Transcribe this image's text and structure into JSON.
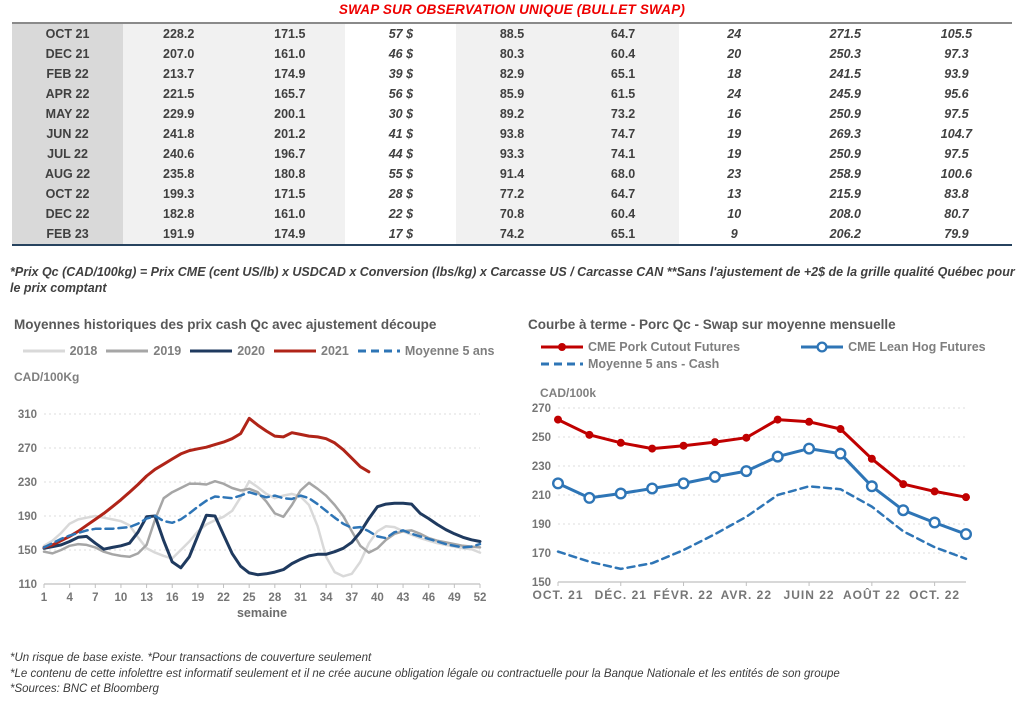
{
  "title": "SWAP SUR OBSERVATION UNIQUE (BULLET SWAP)",
  "colors": {
    "title_red": "#ee0000",
    "table_green": "#00a651",
    "table_blue": "#3b6cd4",
    "month_col_bg": "#d9d9d9",
    "light_col_bg": "#f1f1f1"
  },
  "table": {
    "col_classes": [
      "c-month",
      "c-light",
      "c-light",
      "c-green",
      "c-light",
      "c-light",
      "c-green",
      "c-blue",
      "c-blue"
    ],
    "rows": [
      [
        "OCT 21",
        "228.2",
        "171.5",
        "57 $",
        "88.5",
        "64.7",
        "24",
        "271.5",
        "105.5"
      ],
      [
        "DEC 21",
        "207.0",
        "161.0",
        "46 $",
        "80.3",
        "60.4",
        "20",
        "250.3",
        "97.3"
      ],
      [
        "FEB 22",
        "213.7",
        "174.9",
        "39 $",
        "82.9",
        "65.1",
        "18",
        "241.5",
        "93.9"
      ],
      [
        "APR 22",
        "221.5",
        "165.7",
        "56 $",
        "85.9",
        "61.5",
        "24",
        "245.9",
        "95.6"
      ],
      [
        "MAY 22",
        "229.9",
        "200.1",
        "30 $",
        "89.2",
        "73.2",
        "16",
        "250.9",
        "97.5"
      ],
      [
        "JUN 22",
        "241.8",
        "201.2",
        "41 $",
        "93.8",
        "74.7",
        "19",
        "269.3",
        "104.7"
      ],
      [
        "JUL 22",
        "240.6",
        "196.7",
        "44 $",
        "93.3",
        "74.1",
        "19",
        "250.9",
        "97.5"
      ],
      [
        "AUG 22",
        "235.8",
        "180.8",
        "55 $",
        "91.4",
        "68.0",
        "23",
        "258.9",
        "100.6"
      ],
      [
        "OCT 22",
        "199.3",
        "171.5",
        "28 $",
        "77.2",
        "64.7",
        "13",
        "215.9",
        "83.8"
      ],
      [
        "DEC 22",
        "182.8",
        "161.0",
        "22 $",
        "70.8",
        "60.4",
        "10",
        "208.0",
        "80.7"
      ],
      [
        "FEB 23",
        "191.9",
        "174.9",
        "17 $",
        "74.2",
        "65.1",
        "9",
        "206.2",
        "79.9"
      ]
    ],
    "note": "*Prix Qc (CAD/100kg) = Prix CME (cent US/lb) x USDCAD x Conversion (lbs/kg) x Carcasse US / Carcasse CAN **Sans l'ajustement de +2$ de la grille qualité Québec pour le prix comptant"
  },
  "legends": {
    "left": [
      {
        "label": "2018",
        "color": "#d9d9d9"
      },
      {
        "label": "2019",
        "color": "#a6a6a6"
      },
      {
        "label": "2020",
        "color": "#1f3a5f"
      },
      {
        "label": "2021",
        "color": "#b02418"
      },
      {
        "label": "Moyenne 5 ans",
        "color": "#2e75b6",
        "dash": true
      }
    ],
    "right_row1": [
      {
        "label": "CME Pork Cutout Futures",
        "color": "#c00000",
        "marker": "filled"
      },
      {
        "label": "CME Lean Hog Futures",
        "color": "#2e75b6",
        "marker": "open"
      }
    ],
    "right_row2": [
      {
        "label": "Moyenne 5 ans - Cash",
        "color": "#2e75b6",
        "dash": true
      }
    ]
  },
  "chart_data": [
    {
      "type": "line",
      "title": "Moyennes historiques des prix cash Qc avec ajustement découpe",
      "unit": "CAD/100Kg",
      "xlabel": "semaine",
      "xlim": [
        1,
        52
      ],
      "ylim": [
        110,
        310
      ],
      "y_ticks": [
        110,
        150,
        190,
        230,
        270,
        310
      ],
      "x_ticks": [
        {
          "v": 1,
          "l": "1"
        },
        {
          "v": 4,
          "l": "4"
        },
        {
          "v": 7,
          "l": "7"
        },
        {
          "v": 10,
          "l": "10"
        },
        {
          "v": 13,
          "l": "13"
        },
        {
          "v": 16,
          "l": "16"
        },
        {
          "v": 19,
          "l": "19"
        },
        {
          "v": 22,
          "l": "22"
        },
        {
          "v": 25,
          "l": "25"
        },
        {
          "v": 28,
          "l": "28"
        },
        {
          "v": 31,
          "l": "31"
        },
        {
          "v": 34,
          "l": "34"
        },
        {
          "v": 37,
          "l": "37"
        },
        {
          "v": 40,
          "l": "40"
        },
        {
          "v": 43,
          "l": "43"
        },
        {
          "v": 46,
          "l": "46"
        },
        {
          "v": 49,
          "l": "49"
        },
        {
          "v": 52,
          "l": "52"
        }
      ],
      "series": [
        {
          "name": "2018",
          "color": "#d9d9d9",
          "width": 2.5,
          "values": [
            155,
            161,
            170,
            181,
            186,
            188,
            190,
            188,
            186,
            184,
            179,
            165,
            152,
            147,
            143,
            140,
            150,
            160,
            172,
            180,
            185,
            189,
            196,
            212,
            231,
            224,
            216,
            211,
            214,
            216,
            213,
            203,
            178,
            142,
            124,
            119,
            122,
            136,
            158,
            172,
            178,
            177,
            172,
            168,
            164,
            161,
            158,
            156,
            154,
            152,
            151,
            147
          ]
        },
        {
          "name": "2019",
          "color": "#a6a6a6",
          "width": 2.5,
          "values": [
            148,
            146,
            150,
            155,
            157,
            156,
            153,
            148,
            145,
            143,
            142,
            146,
            156,
            186,
            211,
            218,
            223,
            228,
            228,
            227,
            231,
            228,
            223,
            220,
            222,
            218,
            207,
            193,
            189,
            203,
            220,
            229,
            222,
            214,
            203,
            190,
            172,
            155,
            147,
            152,
            162,
            169,
            172,
            173,
            169,
            164,
            161,
            159,
            157,
            155,
            154,
            153
          ]
        },
        {
          "name": "2020",
          "color": "#1f3a5f",
          "width": 3,
          "values": [
            152,
            154,
            156,
            160,
            165,
            166,
            158,
            151,
            153,
            155,
            158,
            171,
            189,
            190,
            161,
            136,
            129,
            142,
            167,
            191,
            190,
            168,
            146,
            131,
            123,
            121,
            122,
            124,
            127,
            134,
            139,
            143,
            145,
            145,
            148,
            152,
            159,
            171,
            187,
            201,
            204,
            205,
            205,
            204,
            193,
            187,
            180,
            174,
            169,
            165,
            162,
            160
          ]
        },
        {
          "name": "2021",
          "color": "#b02418",
          "width": 3,
          "values": [
            153,
            156,
            161,
            166,
            172,
            179,
            186,
            193,
            201,
            209,
            218,
            227,
            237,
            245,
            251,
            257,
            263,
            267,
            269,
            271,
            274,
            277,
            281,
            287,
            305,
            297,
            290,
            284,
            283,
            288,
            286,
            284,
            283,
            281,
            276,
            268,
            258,
            248,
            242,
            null,
            null,
            null,
            null,
            null,
            null,
            null,
            null,
            null,
            null,
            null,
            null,
            null
          ]
        },
        {
          "name": "Moyenne 5 ans",
          "color": "#2e75b6",
          "width": 2.5,
          "dash": "8 5",
          "values": [
            153,
            158,
            163,
            167,
            170,
            173,
            175,
            175,
            175,
            176,
            177,
            181,
            187,
            190,
            184,
            182,
            186,
            193,
            201,
            208,
            213,
            212,
            211,
            214,
            218,
            215,
            212,
            214,
            211,
            210,
            214,
            211,
            204,
            196,
            188,
            181,
            176,
            177,
            172,
            166,
            164,
            171,
            173,
            169,
            166,
            163,
            160,
            157,
            155,
            153,
            154,
            157
          ]
        }
      ]
    },
    {
      "type": "line",
      "title": "Courbe à terme - Porc Qc - Swap sur moyenne mensuelle",
      "unit": "CAD/100k",
      "xlabel": "",
      "categories": [
        "OCT. 21",
        "NOV. 21",
        "DÉC. 21",
        "JANV. 22",
        "FÉVR. 22",
        "MARS 22",
        "AVR. 22",
        "MAI 22",
        "JUIN 22",
        "JUIL. 22",
        "AOÛT 22",
        "SEPT. 22",
        "OCT. 22",
        "NOV. 22"
      ],
      "xlim": [
        0,
        13
      ],
      "ylim": [
        150,
        270
      ],
      "y_ticks": [
        150,
        170,
        190,
        210,
        230,
        250,
        270
      ],
      "x_ticks": [
        {
          "v": 0,
          "l": "OCT. 21"
        },
        {
          "v": 2,
          "l": "DÉC. 21"
        },
        {
          "v": 4,
          "l": "FÉVR. 22"
        },
        {
          "v": 6,
          "l": "AVR. 22"
        },
        {
          "v": 8,
          "l": "JUIN 22"
        },
        {
          "v": 10,
          "l": "AOÛT 22"
        },
        {
          "v": 12,
          "l": "OCT. 22"
        }
      ],
      "series": [
        {
          "name": "Moyenne 5 ans - Cash",
          "color": "#2e75b6",
          "width": 2.5,
          "dash": "7 5",
          "values": [
            171,
            164,
            159,
            163,
            172,
            183,
            195,
            210,
            216,
            214,
            202,
            185,
            174,
            166
          ]
        },
        {
          "name": "CME Lean Hog Futures",
          "color": "#2e75b6",
          "width": 3,
          "marker": "open",
          "values": [
            218,
            208,
            211,
            214.5,
            218,
            222.5,
            226.5,
            236.5,
            242,
            238.5,
            216,
            199.5,
            191,
            183
          ]
        },
        {
          "name": "CME Pork Cutout Futures",
          "color": "#c00000",
          "width": 3,
          "marker": "filled",
          "values": [
            262,
            251.5,
            246,
            242,
            244,
            246.5,
            249.5,
            262,
            260.5,
            255.5,
            235,
            217.5,
            212.5,
            208.5
          ]
        }
      ]
    }
  ],
  "footnotes": [
    "*Un risque de base existe. *Pour transactions de couverture seulement",
    "*Le contenu de cette infolettre est informatif seulement et il ne crée aucune obligation légale ou contractuelle pour la Banque Nationale et les entités de son groupe",
    "*Sources: BNC et Bloomberg"
  ]
}
